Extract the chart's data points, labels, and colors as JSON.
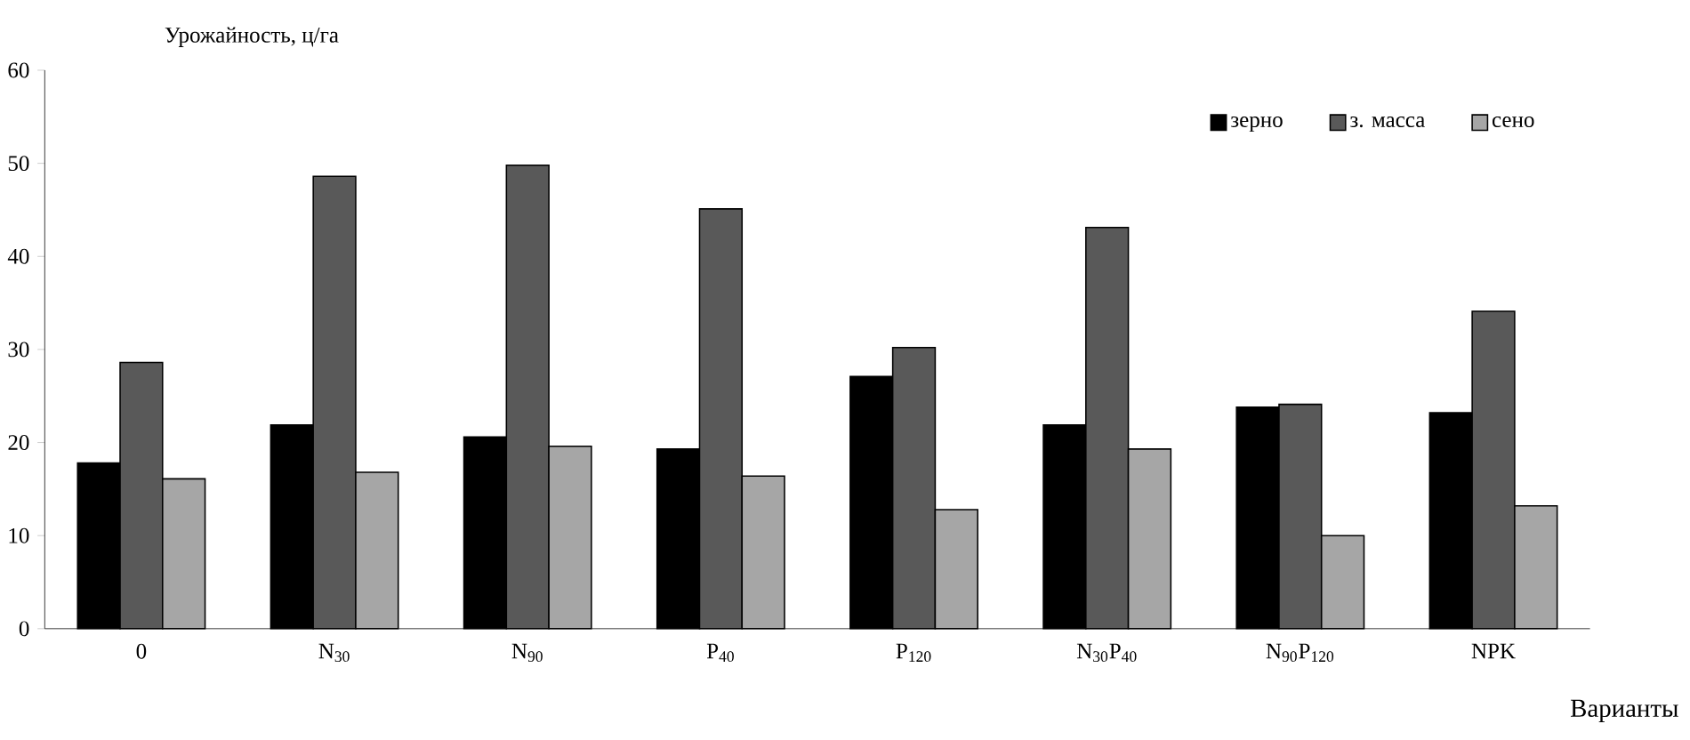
{
  "chart_data": {
    "type": "bar",
    "ylabel": "Урожайность, ц/га",
    "xlabel": "Варианты",
    "categories": [
      "0",
      "N$_{30}$",
      "N$_{90}$",
      "P$_{40}$",
      "P$_{120}$",
      "N$_{30}$P$_{40}$",
      "N$_{90}$P$_{120}$",
      "NPK"
    ],
    "series": [
      {
        "name": "зерно",
        "color": "#000000",
        "values": [
          17.8,
          21.9,
          20.6,
          19.3,
          27.1,
          21.9,
          23.8,
          23.2
        ]
      },
      {
        "name": "з. масса",
        "color": "#595959",
        "values": [
          28.6,
          48.6,
          49.8,
          45.1,
          30.2,
          43.1,
          24.1,
          34.1
        ]
      },
      {
        "name": "сено",
        "color": "#a6a6a6",
        "values": [
          16.1,
          16.8,
          19.6,
          16.4,
          12.8,
          19.3,
          10.0,
          13.2
        ]
      }
    ],
    "ylim": [
      0,
      60
    ],
    "yticks": [
      0,
      10,
      20,
      30,
      40,
      50,
      60
    ],
    "grid": false,
    "legend": "top right"
  }
}
